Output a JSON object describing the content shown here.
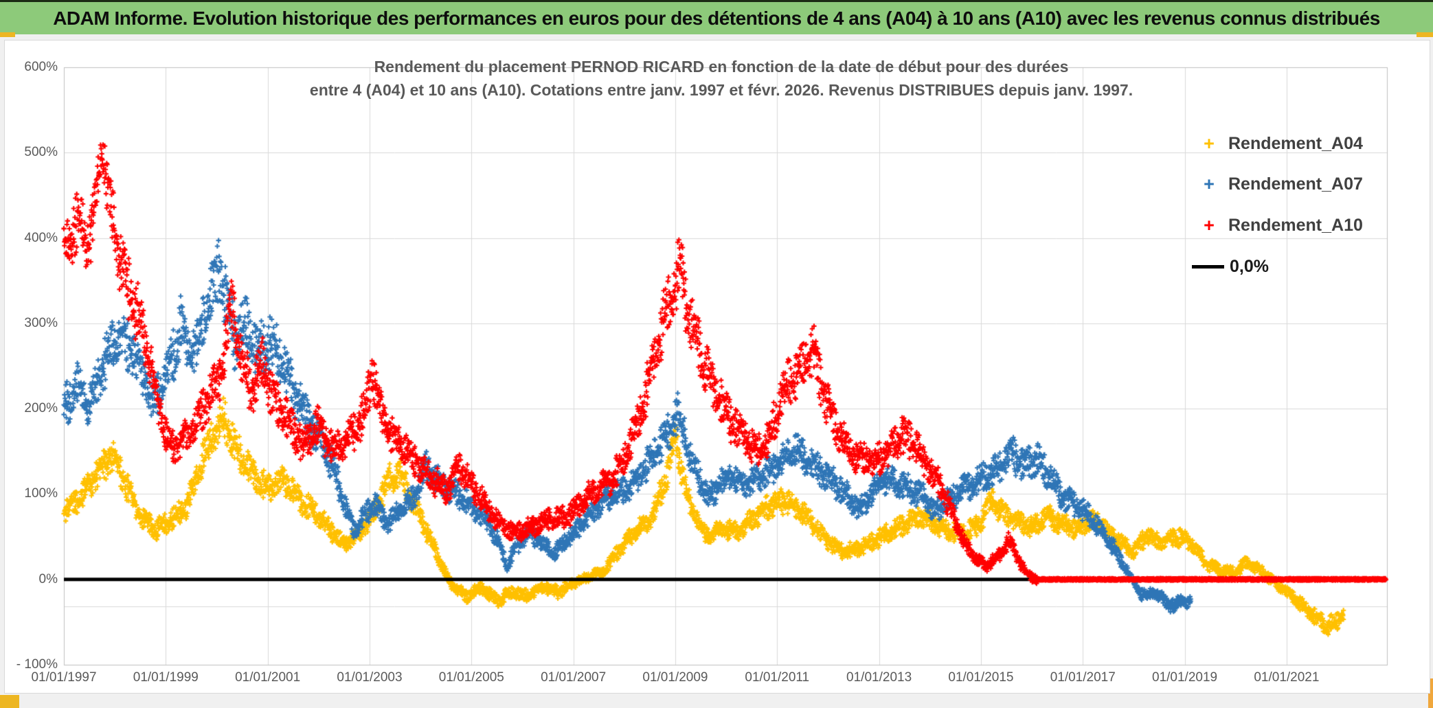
{
  "header": {
    "title": "ADAM Informe. Evolution historique des performances en euros pour des détentions de 4 ans (A04) à 10 ans (A10) avec les revenus connus distribués"
  },
  "legend": {
    "items": [
      {
        "label": "Rendement_A04",
        "color": "#FFC000",
        "marker": "+"
      },
      {
        "label": "Rendement_A07",
        "color": "#2E75B6",
        "marker": "+"
      },
      {
        "label": "Rendement_A10",
        "color": "#FF0000",
        "marker": "+"
      },
      {
        "label": "0,0%",
        "color": "#000000",
        "marker": "line"
      }
    ]
  },
  "chart_data": {
    "type": "scatter",
    "title_line1": "Rendement du placement PERNOD RICARD en fonction de la date de début pour des durées",
    "title_line2": "entre 4 (A04) et 10 ans (A10). Cotations entre janv. 1997 et févr. 2026. Revenus DISTRIBUES depuis janv. 1997.",
    "grid": true,
    "legend_position": "top-right-inside",
    "x_axis": {
      "min_year": 1997.0,
      "max_year": 2022.97,
      "tick_years": [
        1997,
        1999,
        2001,
        2003,
        2005,
        2007,
        2009,
        2011,
        2013,
        2015,
        2017,
        2019,
        2021
      ],
      "tick_labels": [
        "01/01/1997",
        "01/01/1999",
        "01/01/2001",
        "01/01/2003",
        "01/01/2005",
        "01/01/2007",
        "01/01/2009",
        "01/01/2011",
        "01/01/2013",
        "01/01/2015",
        "01/01/2017",
        "01/01/2019",
        "01/01/2021"
      ]
    },
    "y_axis": {
      "min": -100,
      "max": 600,
      "unit": "%",
      "tick_values": [
        600,
        500,
        400,
        300,
        200,
        100,
        0,
        -100
      ],
      "tick_labels": [
        "600%",
        "500%",
        "400%",
        "300%",
        "200%",
        "100%",
        "0%",
        "- 100%"
      ]
    },
    "zero_line": {
      "label": "0,0%",
      "value": 0,
      "color": "#000000"
    },
    "series": [
      {
        "name": "Rendement_A04",
        "color": "#FFC000",
        "marker": "+",
        "keypoints": [
          [
            1997.0,
            80
          ],
          [
            1997.3,
            95
          ],
          [
            1997.6,
            120
          ],
          [
            1997.95,
            148
          ],
          [
            1998.2,
            115
          ],
          [
            1998.5,
            75
          ],
          [
            1998.8,
            58
          ],
          [
            1999.1,
            70
          ],
          [
            1999.4,
            85
          ],
          [
            1999.65,
            130
          ],
          [
            1999.9,
            165
          ],
          [
            2000.15,
            190
          ],
          [
            2000.4,
            150
          ],
          [
            2000.7,
            125
          ],
          [
            2001.0,
            105
          ],
          [
            2001.3,
            118
          ],
          [
            2001.6,
            95
          ],
          [
            2001.9,
            80
          ],
          [
            2002.2,
            60
          ],
          [
            2002.5,
            40
          ],
          [
            2002.8,
            55
          ],
          [
            2003.1,
            80
          ],
          [
            2003.4,
            118
          ],
          [
            2003.6,
            125
          ],
          [
            2003.85,
            90
          ],
          [
            2004.1,
            60
          ],
          [
            2004.4,
            18
          ],
          [
            2004.6,
            -5
          ],
          [
            2004.9,
            -20
          ],
          [
            2005.2,
            -10
          ],
          [
            2005.5,
            -25
          ],
          [
            2005.8,
            -15
          ],
          [
            2006.1,
            -20
          ],
          [
            2006.4,
            -8
          ],
          [
            2006.7,
            -15
          ],
          [
            2007.0,
            -5
          ],
          [
            2007.3,
            3
          ],
          [
            2007.6,
            10
          ],
          [
            2007.9,
            35
          ],
          [
            2008.2,
            55
          ],
          [
            2008.5,
            68
          ],
          [
            2008.8,
            115
          ],
          [
            2009.0,
            168
          ],
          [
            2009.15,
            120
          ],
          [
            2009.3,
            85
          ],
          [
            2009.6,
            50
          ],
          [
            2009.9,
            60
          ],
          [
            2010.2,
            55
          ],
          [
            2010.5,
            70
          ],
          [
            2010.8,
            85
          ],
          [
            2011.1,
            92
          ],
          [
            2011.4,
            85
          ],
          [
            2011.7,
            65
          ],
          [
            2012.0,
            45
          ],
          [
            2012.3,
            32
          ],
          [
            2012.6,
            36
          ],
          [
            2012.9,
            45
          ],
          [
            2013.2,
            55
          ],
          [
            2013.5,
            65
          ],
          [
            2013.8,
            76
          ],
          [
            2014.1,
            65
          ],
          [
            2014.4,
            56
          ],
          [
            2014.7,
            55
          ],
          [
            2015.0,
            66
          ],
          [
            2015.2,
            95
          ],
          [
            2015.45,
            76
          ],
          [
            2015.7,
            70
          ],
          [
            2016.0,
            60
          ],
          [
            2016.3,
            76
          ],
          [
            2016.6,
            64
          ],
          [
            2016.9,
            60
          ],
          [
            2017.2,
            72
          ],
          [
            2017.5,
            55
          ],
          [
            2017.8,
            40
          ],
          [
            2018.0,
            32
          ],
          [
            2018.25,
            52
          ],
          [
            2018.5,
            44
          ],
          [
            2018.8,
            50
          ],
          [
            2019.1,
            45
          ],
          [
            2019.4,
            20
          ],
          [
            2019.7,
            10
          ],
          [
            2020.0,
            8
          ],
          [
            2020.2,
            20
          ],
          [
            2020.45,
            12
          ],
          [
            2020.7,
            0
          ],
          [
            2020.95,
            -12
          ],
          [
            2021.2,
            -25
          ],
          [
            2021.5,
            -40
          ],
          [
            2021.8,
            -55
          ],
          [
            2022.0,
            -50
          ],
          [
            2022.12,
            -38
          ]
        ]
      },
      {
        "name": "Rendement_A07",
        "color": "#2E75B6",
        "marker": "+",
        "keypoints": [
          [
            1997.0,
            200
          ],
          [
            1997.25,
            228
          ],
          [
            1997.5,
            205
          ],
          [
            1997.75,
            250
          ],
          [
            1998.15,
            288
          ],
          [
            1998.5,
            250
          ],
          [
            1998.75,
            205
          ],
          [
            1999.05,
            240
          ],
          [
            1999.3,
            298
          ],
          [
            1999.5,
            262
          ],
          [
            1999.75,
            300
          ],
          [
            2000.05,
            368
          ],
          [
            2000.2,
            330
          ],
          [
            2000.35,
            278
          ],
          [
            2000.55,
            298
          ],
          [
            2000.8,
            265
          ],
          [
            2001.05,
            278
          ],
          [
            2001.3,
            255
          ],
          [
            2001.55,
            215
          ],
          [
            2001.8,
            185
          ],
          [
            2002.05,
            165
          ],
          [
            2002.3,
            130
          ],
          [
            2002.55,
            80
          ],
          [
            2002.7,
            55
          ],
          [
            2002.9,
            75
          ],
          [
            2003.1,
            90
          ],
          [
            2003.35,
            65
          ],
          [
            2003.6,
            80
          ],
          [
            2003.85,
            95
          ],
          [
            2004.1,
            132
          ],
          [
            2004.35,
            115
          ],
          [
            2004.6,
            105
          ],
          [
            2004.85,
            95
          ],
          [
            2005.1,
            80
          ],
          [
            2005.35,
            65
          ],
          [
            2005.55,
            40
          ],
          [
            2005.7,
            15
          ],
          [
            2005.85,
            35
          ],
          [
            2006.1,
            55
          ],
          [
            2006.35,
            45
          ],
          [
            2006.6,
            30
          ],
          [
            2006.85,
            45
          ],
          [
            2007.1,
            60
          ],
          [
            2007.35,
            75
          ],
          [
            2007.6,
            95
          ],
          [
            2007.85,
            100
          ],
          [
            2008.1,
            110
          ],
          [
            2008.35,
            125
          ],
          [
            2008.6,
            150
          ],
          [
            2008.85,
            170
          ],
          [
            2009.05,
            195
          ],
          [
            2009.2,
            165
          ],
          [
            2009.35,
            135
          ],
          [
            2009.5,
            115
          ],
          [
            2009.65,
            95
          ],
          [
            2009.85,
            110
          ],
          [
            2010.1,
            120
          ],
          [
            2010.35,
            110
          ],
          [
            2010.6,
            118
          ],
          [
            2010.85,
            128
          ],
          [
            2011.1,
            138
          ],
          [
            2011.35,
            152
          ],
          [
            2011.6,
            140
          ],
          [
            2011.85,
            128
          ],
          [
            2012.1,
            115
          ],
          [
            2012.35,
            100
          ],
          [
            2012.6,
            82
          ],
          [
            2012.85,
            100
          ],
          [
            2013.1,
            118
          ],
          [
            2013.35,
            112
          ],
          [
            2013.6,
            106
          ],
          [
            2013.85,
            98
          ],
          [
            2014.1,
            80
          ],
          [
            2014.35,
            92
          ],
          [
            2014.6,
            105
          ],
          [
            2014.85,
            112
          ],
          [
            2015.1,
            122
          ],
          [
            2015.35,
            132
          ],
          [
            2015.6,
            148
          ],
          [
            2015.85,
            132
          ],
          [
            2016.1,
            142
          ],
          [
            2016.35,
            120
          ],
          [
            2016.6,
            98
          ],
          [
            2016.85,
            88
          ],
          [
            2017.1,
            75
          ],
          [
            2017.35,
            58
          ],
          [
            2017.6,
            38
          ],
          [
            2017.85,
            12
          ],
          [
            2018.05,
            -8
          ],
          [
            2018.2,
            -20
          ],
          [
            2018.4,
            -14
          ],
          [
            2018.6,
            -25
          ],
          [
            2018.8,
            -32
          ],
          [
            2018.95,
            -22
          ],
          [
            2019.12,
            -28
          ]
        ]
      },
      {
        "name": "Rendement_A10",
        "color": "#FF0000",
        "marker": "+",
        "keypoints": [
          [
            1997.0,
            385
          ],
          [
            1997.25,
            415
          ],
          [
            1997.5,
            395
          ],
          [
            1997.75,
            505
          ],
          [
            1997.9,
            440
          ],
          [
            1998.1,
            370
          ],
          [
            1998.35,
            330
          ],
          [
            1998.6,
            280
          ],
          [
            1998.85,
            210
          ],
          [
            1999.1,
            152
          ],
          [
            1999.35,
            165
          ],
          [
            1999.6,
            180
          ],
          [
            1999.85,
            215
          ],
          [
            2000.1,
            245
          ],
          [
            2000.3,
            325
          ],
          [
            2000.5,
            250
          ],
          [
            2000.7,
            222
          ],
          [
            2000.9,
            252
          ],
          [
            2001.1,
            215
          ],
          [
            2001.4,
            185
          ],
          [
            2001.7,
            158
          ],
          [
            2002.0,
            180
          ],
          [
            2002.3,
            150
          ],
          [
            2002.6,
            165
          ],
          [
            2002.9,
            195
          ],
          [
            2003.05,
            248
          ],
          [
            2003.2,
            200
          ],
          [
            2003.45,
            165
          ],
          [
            2003.7,
            155
          ],
          [
            2003.95,
            135
          ],
          [
            2004.2,
            120
          ],
          [
            2004.5,
            103
          ],
          [
            2004.75,
            133
          ],
          [
            2005.0,
            110
          ],
          [
            2005.3,
            85
          ],
          [
            2005.6,
            64
          ],
          [
            2005.9,
            55
          ],
          [
            2006.2,
            62
          ],
          [
            2006.5,
            70
          ],
          [
            2006.8,
            72
          ],
          [
            2007.1,
            85
          ],
          [
            2007.4,
            105
          ],
          [
            2007.7,
            115
          ],
          [
            2008.0,
            140
          ],
          [
            2008.3,
            190
          ],
          [
            2008.55,
            250
          ],
          [
            2008.8,
            312
          ],
          [
            2009.0,
            345
          ],
          [
            2009.1,
            370
          ],
          [
            2009.25,
            308
          ],
          [
            2009.4,
            285
          ],
          [
            2009.55,
            255
          ],
          [
            2009.7,
            230
          ],
          [
            2009.9,
            210
          ],
          [
            2010.1,
            185
          ],
          [
            2010.35,
            170
          ],
          [
            2010.6,
            148
          ],
          [
            2010.85,
            165
          ],
          [
            2011.1,
            218
          ],
          [
            2011.35,
            240
          ],
          [
            2011.55,
            255
          ],
          [
            2011.7,
            272
          ],
          [
            2011.85,
            235
          ],
          [
            2012.0,
            205
          ],
          [
            2012.2,
            170
          ],
          [
            2012.45,
            150
          ],
          [
            2012.7,
            142
          ],
          [
            2012.95,
            138
          ],
          [
            2013.2,
            152
          ],
          [
            2013.45,
            168
          ],
          [
            2013.7,
            158
          ],
          [
            2013.95,
            132
          ],
          [
            2014.2,
            110
          ],
          [
            2014.45,
            75
          ],
          [
            2014.7,
            40
          ],
          [
            2014.9,
            25
          ],
          [
            2015.1,
            15
          ],
          [
            2015.35,
            27
          ],
          [
            2015.55,
            45
          ],
          [
            2015.7,
            30
          ],
          [
            2015.85,
            10
          ],
          [
            2016.0,
            3
          ],
          [
            2016.1,
            0
          ]
        ],
        "zero_tail_years": [
          2016.1,
          2022.95
        ]
      }
    ]
  }
}
